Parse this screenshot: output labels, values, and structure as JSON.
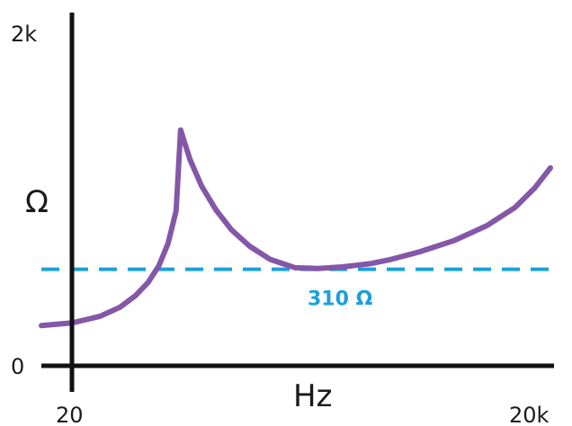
{
  "chart_data": {
    "type": "line",
    "xlabel": "Hz",
    "ylabel": "Ω",
    "x_ticks": [
      "20",
      "20k"
    ],
    "y_ticks": [
      "0",
      "2k"
    ],
    "xscale": "log",
    "xlim": [
      20,
      20000
    ],
    "ylim": [
      0,
      2000
    ],
    "grid": false,
    "series": [
      {
        "x": [
          20,
          30,
          40,
          50,
          60,
          70,
          80,
          90,
          96,
          110,
          130,
          160,
          200,
          260,
          350,
          500,
          700,
          1000,
          1500,
          2000,
          3000,
          5000,
          8000,
          12000,
          16000,
          20000
        ],
        "y": [
          260,
          300,
          355,
          425,
          505,
          605,
          740,
          940,
          1430,
          1250,
          1090,
          945,
          825,
          725,
          645,
          595,
          590,
          600,
          620,
          645,
          690,
          760,
          850,
          960,
          1080,
          1200
        ],
        "color": "#8457a8"
      }
    ],
    "reference_line": {
      "value": 585,
      "label": "310 Ω",
      "color": "#1aa0dc",
      "style": "dashed"
    }
  }
}
